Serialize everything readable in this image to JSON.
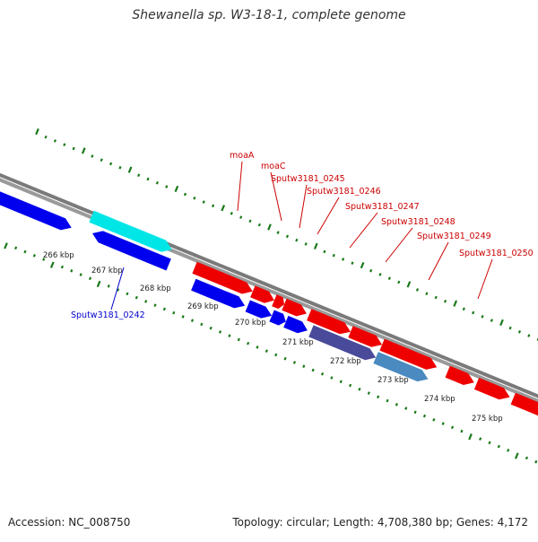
{
  "map": {
    "title": "Shewanella sp. W3-18-1, complete genome",
    "accession": "Accession: NC_008750",
    "stats": "Topology: circular; Length: 4,708,380 bp; Genes: 4,172",
    "colors": {
      "background": "#ffffff",
      "backbone": "#808080",
      "tick_outer": "#1a7a1a",
      "tick_inner": "#1a7a1a",
      "forward_cds": "#0000ee",
      "reverse_cds": "#ee0000",
      "highlight_forward": "#4a4a9a",
      "highlight_light": "#4a8ac0",
      "cyan_cds": "#00e6e6",
      "label_red": "#cc0000",
      "label_blue": "#0000cc",
      "label_text": "#222222"
    },
    "kbp_labels": [
      "266 kbp",
      "267 kbp",
      "268 kbp",
      "269 kbp",
      "270 kbp",
      "271 kbp",
      "272 kbp",
      "273 kbp",
      "274 kbp",
      "275 kbp"
    ],
    "gene_labels": [
      {
        "text": "moaA",
        "color_key": "label_red"
      },
      {
        "text": "moaC",
        "color_key": "label_red"
      },
      {
        "text": "Sputw3181_0245",
        "color_key": "label_red"
      },
      {
        "text": "Sputw3181_0246",
        "color_key": "label_red"
      },
      {
        "text": "Sputw3181_0247",
        "color_key": "label_red"
      },
      {
        "text": "Sputw3181_0248",
        "color_key": "label_red"
      },
      {
        "text": "Sputw3181_0249",
        "color_key": "label_red"
      },
      {
        "text": "Sputw3181_0250",
        "color_key": "label_red"
      },
      {
        "text": "Sputw3181_0242",
        "color_key": "label_blue"
      }
    ]
  }
}
